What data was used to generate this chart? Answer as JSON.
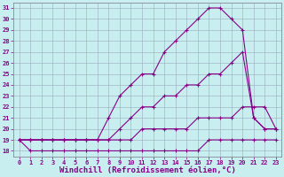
{
  "xlabel": "Windchill (Refroidissement éolien,°C)",
  "bg_color": "#c8eef0",
  "line_color": "#880088",
  "grid_color": "#99aabb",
  "xlim": [
    -0.5,
    23.5
  ],
  "ylim": [
    17.5,
    31.5
  ],
  "xticks": [
    0,
    1,
    2,
    3,
    4,
    5,
    6,
    7,
    8,
    9,
    10,
    11,
    12,
    13,
    14,
    15,
    16,
    17,
    18,
    19,
    20,
    21,
    22,
    23
  ],
  "yticks": [
    18,
    19,
    20,
    21,
    22,
    23,
    24,
    25,
    26,
    27,
    28,
    29,
    30,
    31
  ],
  "line1_x": [
    0,
    1,
    2,
    3,
    4,
    5,
    6,
    7,
    8,
    9,
    10,
    11,
    12,
    13,
    14,
    15,
    16,
    17,
    18,
    19,
    20,
    21,
    22,
    23
  ],
  "line1_y": [
    19,
    18,
    18,
    18,
    18,
    18,
    18,
    18,
    18,
    18,
    18,
    18,
    18,
    18,
    18,
    18,
    18,
    19,
    19,
    19,
    19,
    19,
    19,
    19
  ],
  "line2_x": [
    0,
    1,
    2,
    3,
    4,
    5,
    6,
    7,
    8,
    9,
    10,
    11,
    12,
    13,
    14,
    15,
    16,
    17,
    18,
    19,
    20,
    21,
    22,
    23
  ],
  "line2_y": [
    19,
    19,
    19,
    19,
    19,
    19,
    19,
    19,
    19,
    19,
    19,
    20,
    20,
    20,
    20,
    20,
    21,
    21,
    21,
    21,
    22,
    22,
    22,
    20
  ],
  "line3_x": [
    0,
    1,
    2,
    3,
    4,
    5,
    6,
    7,
    8,
    9,
    10,
    11,
    12,
    13,
    14,
    15,
    16,
    17,
    18,
    19,
    20,
    21,
    22,
    23
  ],
  "line3_y": [
    19,
    19,
    19,
    19,
    19,
    19,
    19,
    19,
    19,
    20,
    21,
    22,
    22,
    23,
    23,
    24,
    24,
    25,
    25,
    26,
    27,
    21,
    20,
    20
  ],
  "line4_x": [
    0,
    1,
    2,
    3,
    4,
    5,
    6,
    7,
    8,
    9,
    10,
    11,
    12,
    13,
    14,
    15,
    16,
    17,
    18,
    19,
    20,
    21,
    22,
    23
  ],
  "line4_y": [
    19,
    19,
    19,
    19,
    19,
    19,
    19,
    19,
    21,
    23,
    24,
    25,
    25,
    27,
    28,
    29,
    30,
    31,
    31,
    30,
    29,
    21,
    20,
    20
  ],
  "marker": "+",
  "markersize": 3,
  "linewidth": 0.8,
  "tick_fontsize": 5,
  "xlabel_fontsize": 6.5,
  "font_family": "monospace"
}
